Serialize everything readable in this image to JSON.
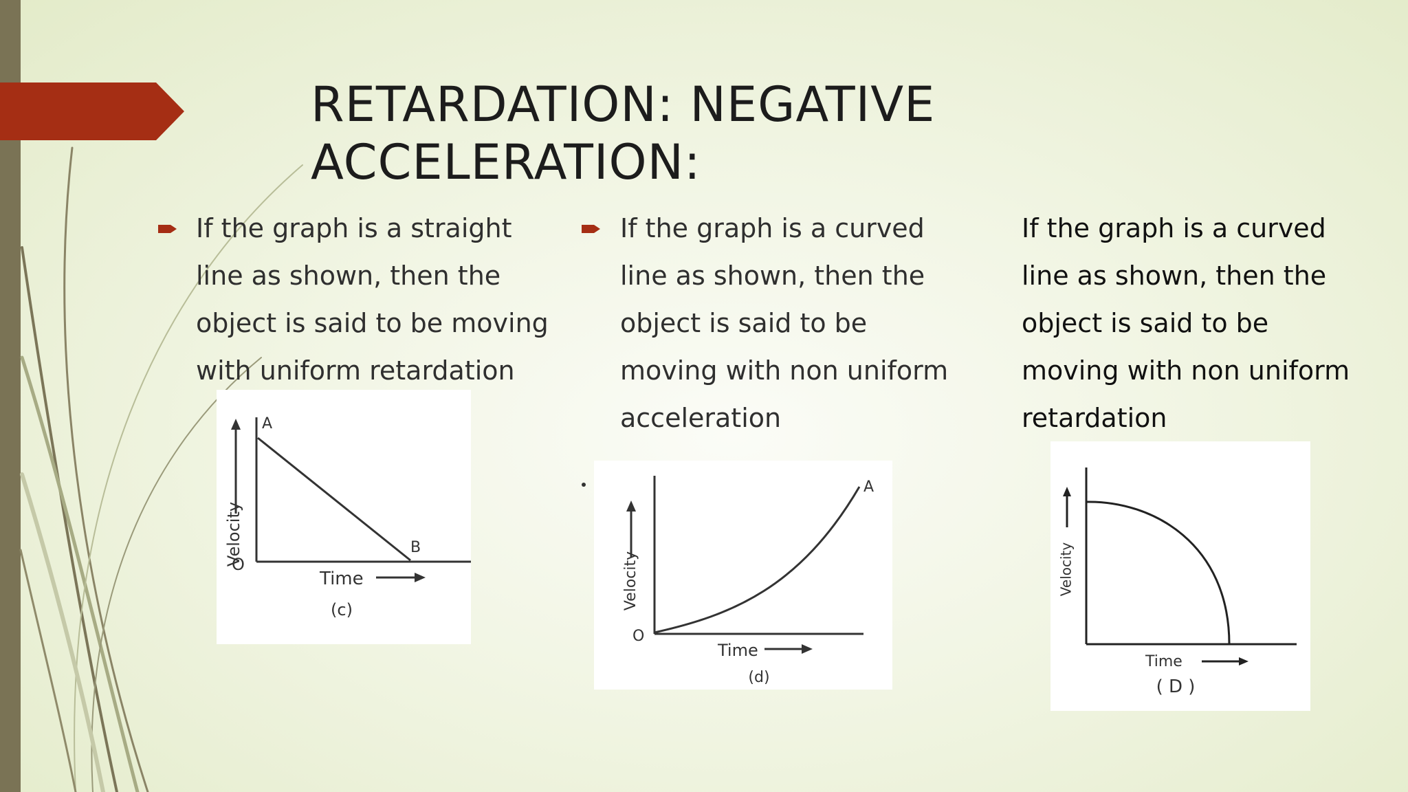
{
  "slide": {
    "title_lines": [
      "RETARDATION: NEGATIVE",
      "ACCELERATION:"
    ],
    "colors": {
      "accent_banner": "#a52e14",
      "left_bar": "#7a7355",
      "background": "#eef3dc",
      "bullet": "#a52e14"
    }
  },
  "columns": [
    {
      "bullet_icon": "right-arrow-bullet-icon",
      "lines": [
        "If the graph is a straight",
        "line as shown, then the",
        "object is said to be moving",
        "with uniform retardation"
      ]
    },
    {
      "bullet_icon": "right-arrow-bullet-icon",
      "lines": [
        "If the graph is a curved",
        "line as shown, then the",
        "object is said to be",
        "moving with non uniform",
        "acceleration"
      ]
    },
    {
      "bullet_icon": "",
      "lines": [
        "If the graph is a curved",
        "line as shown, then the",
        "object is said to be",
        "moving with non uniform",
        "retardation"
      ]
    }
  ],
  "graphs": [
    {
      "ylabel": "Velocity",
      "xlabel": "Time",
      "origin": "O",
      "point_a": "A",
      "point_b": "B",
      "caption": "(c)",
      "curve": "straight-decreasing"
    },
    {
      "ylabel": "Velocity",
      "xlabel": "Time",
      "origin": "O",
      "point_a": "A",
      "caption": "(d)",
      "curve": "concave-up-increasing"
    },
    {
      "ylabel": "Velocity",
      "xlabel": "Time",
      "caption": "( D )",
      "curve": "concave-down-decreasing"
    }
  ]
}
